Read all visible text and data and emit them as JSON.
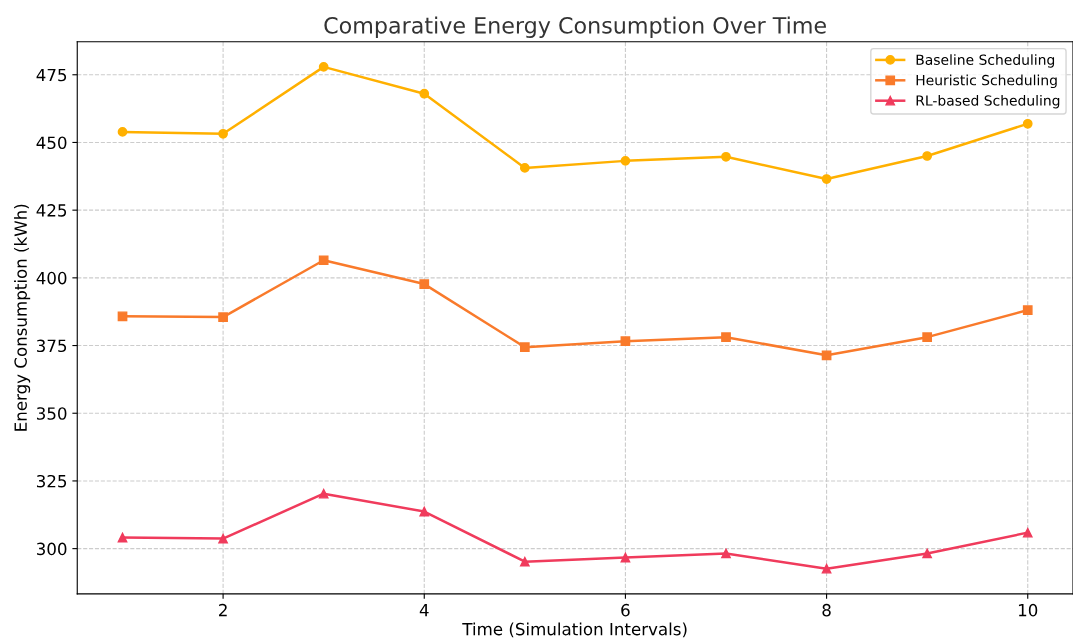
{
  "chart_data": {
    "type": "line",
    "title": "Comparative Energy Consumption Over Time",
    "xlabel": "Time (Simulation Intervals)",
    "ylabel": "Energy Consumption (kWh)",
    "x": [
      1,
      2,
      3,
      4,
      5,
      6,
      7,
      8,
      9,
      10
    ],
    "series": [
      {
        "name": "Baseline Scheduling",
        "color": "#ffb000",
        "marker": "circle",
        "values": [
          453.9,
          453.2,
          477.9,
          468.0,
          440.6,
          443.2,
          444.7,
          436.5,
          445.0,
          456.9
        ]
      },
      {
        "name": "Heuristic Scheduling",
        "color": "#f97a2b",
        "marker": "square",
        "values": [
          385.8,
          385.5,
          406.5,
          397.7,
          374.4,
          376.6,
          378.1,
          371.4,
          378.1,
          388.1
        ]
      },
      {
        "name": "RL-based Scheduling",
        "color": "#f03b5c",
        "marker": "triangle",
        "values": [
          304.1,
          303.7,
          320.3,
          313.7,
          295.2,
          296.7,
          298.2,
          292.6,
          298.2,
          305.9
        ]
      }
    ],
    "xlim": [
      0.55,
      10.45
    ],
    "ylim": [
      283.3,
      487.2
    ],
    "xticks": [
      2,
      4,
      6,
      8,
      10
    ],
    "yticks": [
      300,
      325,
      350,
      375,
      400,
      425,
      450,
      475
    ],
    "grid": true,
    "legend": "top right",
    "line_style": "solid"
  }
}
